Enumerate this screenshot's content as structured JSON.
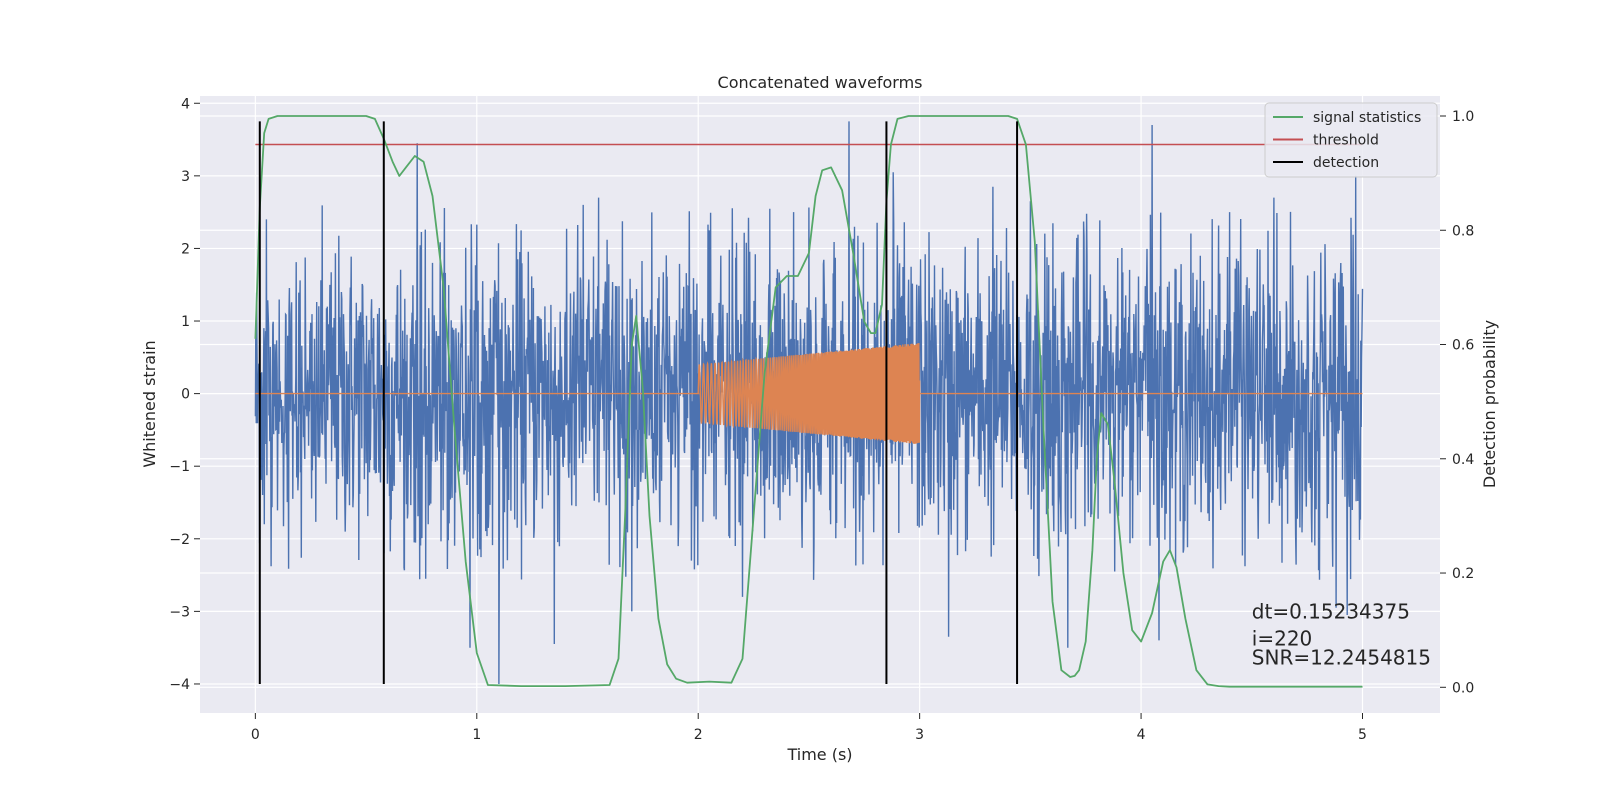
{
  "chart_data": {
    "type": "line",
    "title": "Concatenated waveforms",
    "xlabel": "Time (s)",
    "ylabel": "Whitened strain",
    "y2label": "Detection probability",
    "xlim": [
      -0.25,
      5.35
    ],
    "ylim": [
      -4.4,
      4.1
    ],
    "y2lim": [
      -0.045,
      1.035
    ],
    "x_ticks": [
      0,
      1,
      2,
      3,
      4,
      5
    ],
    "y_ticks": [
      -4,
      -3,
      -2,
      -1,
      0,
      1,
      2,
      3,
      4
    ],
    "y2_ticks": [
      0.0,
      0.2,
      0.4,
      0.6,
      0.8,
      1.0
    ],
    "x_tick_labels": [
      "0",
      "1",
      "2",
      "3",
      "4",
      "5"
    ],
    "y_tick_labels": [
      "−4",
      "−3",
      "−2",
      "−1",
      "0",
      "1",
      "2",
      "3",
      "4"
    ],
    "y2_tick_labels": [
      "0.0",
      "0.2",
      "0.4",
      "0.6",
      "0.8",
      "1.0"
    ],
    "grid": true,
    "legend_position": "top-right",
    "colors": {
      "strain": "#4c72b0",
      "injection": "#dd8452",
      "signal_statistics": "#55a868",
      "threshold": "#c44e52",
      "detection": "#000000",
      "background": "#eaeaf2",
      "grid": "#ffffff"
    },
    "series": [
      {
        "name": "",
        "axis": "left",
        "kind": "noise",
        "x_range": [
          0,
          5
        ],
        "typical_amplitude": 1.0,
        "peaks": [
          [
            0.04,
            -1.8
          ],
          [
            0.05,
            2.4
          ],
          [
            0.58,
            -2.2
          ],
          [
            0.73,
            3.45
          ],
          [
            0.77,
            -2.55
          ],
          [
            0.97,
            -3.5
          ],
          [
            1.1,
            -4.0
          ],
          [
            1.35,
            -3.45
          ],
          [
            1.48,
            2.6
          ],
          [
            1.55,
            2.7
          ],
          [
            1.7,
            -3.0
          ],
          [
            1.97,
            -2.3
          ],
          [
            2.2,
            -2.8
          ],
          [
            2.43,
            2.5
          ],
          [
            2.68,
            3.75
          ],
          [
            2.88,
            3.05
          ],
          [
            3.13,
            -3.35
          ],
          [
            3.33,
            2.85
          ],
          [
            3.5,
            2.65
          ],
          [
            3.67,
            -3.5
          ],
          [
            3.88,
            -2.45
          ],
          [
            4.05,
            3.7
          ],
          [
            4.08,
            -3.4
          ],
          [
            4.4,
            2.5
          ],
          [
            4.6,
            2.7
          ],
          [
            4.88,
            -2.95
          ],
          [
            4.93,
            -3.05
          ],
          [
            4.97,
            3.0
          ]
        ]
      },
      {
        "name": "",
        "axis": "left",
        "kind": "chirp",
        "baseline_x": [
          0,
          5
        ],
        "burst_x": [
          2.0,
          3.0
        ],
        "start_amplitude": 0.4,
        "end_amplitude": 0.7,
        "start_frequency_hz": 50,
        "end_frequency_hz": 200
      },
      {
        "name": "signal statistics",
        "axis": "right",
        "x": [
          0,
          0.02,
          0.04,
          0.06,
          0.1,
          0.2,
          0.4,
          0.5,
          0.54,
          0.58,
          0.62,
          0.65,
          0.68,
          0.72,
          0.76,
          0.8,
          0.85,
          0.9,
          0.95,
          1.0,
          1.05,
          1.2,
          1.4,
          1.6,
          1.64,
          1.67,
          1.7,
          1.72,
          1.75,
          1.78,
          1.82,
          1.86,
          1.9,
          1.95,
          2.05,
          2.15,
          2.2,
          2.25,
          2.3,
          2.35,
          2.4,
          2.45,
          2.5,
          2.53,
          2.56,
          2.6,
          2.65,
          2.7,
          2.75,
          2.78,
          2.8,
          2.83,
          2.85,
          2.87,
          2.9,
          2.95,
          3.0,
          3.2,
          3.4,
          3.44,
          3.48,
          3.52,
          3.56,
          3.6,
          3.64,
          3.68,
          3.7,
          3.72,
          3.75,
          3.78,
          3.8,
          3.82,
          3.85,
          3.88,
          3.92,
          3.96,
          4.0,
          4.05,
          4.1,
          4.13,
          4.16,
          4.2,
          4.25,
          4.3,
          4.35,
          4.4,
          4.6,
          5.0
        ],
        "values": [
          0.61,
          0.84,
          0.97,
          0.995,
          1.0,
          1.0,
          1.0,
          1.0,
          0.995,
          0.96,
          0.92,
          0.895,
          0.91,
          0.93,
          0.92,
          0.86,
          0.7,
          0.45,
          0.22,
          0.06,
          0.004,
          0.002,
          0.002,
          0.004,
          0.05,
          0.3,
          0.6,
          0.65,
          0.52,
          0.3,
          0.12,
          0.04,
          0.015,
          0.008,
          0.01,
          0.008,
          0.05,
          0.3,
          0.55,
          0.7,
          0.72,
          0.72,
          0.76,
          0.86,
          0.905,
          0.91,
          0.87,
          0.76,
          0.64,
          0.62,
          0.62,
          0.67,
          0.85,
          0.95,
          0.995,
          1.0,
          1.0,
          1.0,
          1.0,
          0.995,
          0.95,
          0.78,
          0.45,
          0.15,
          0.03,
          0.018,
          0.02,
          0.03,
          0.08,
          0.24,
          0.4,
          0.48,
          0.46,
          0.36,
          0.2,
          0.1,
          0.08,
          0.13,
          0.22,
          0.24,
          0.21,
          0.12,
          0.03,
          0.005,
          0.002,
          0.001,
          0.001,
          0.001
        ]
      },
      {
        "name": "threshold",
        "axis": "right",
        "x": [
          0,
          5
        ],
        "values": [
          0.95,
          0.95
        ]
      },
      {
        "name": "detection",
        "axis": "left",
        "kind": "vlines",
        "x": [
          0.02,
          0.58,
          2.85,
          3.44
        ],
        "y_range": [
          -4.0,
          3.75
        ]
      }
    ],
    "annotations": [
      {
        "text": "dt=0.15234375",
        "x": 4.5,
        "y": -3.1
      },
      {
        "text": " i=220",
        "x": 4.5,
        "y": -3.47
      },
      {
        "text": "SNR=12.2454815",
        "x": 4.5,
        "y": -3.73
      }
    ]
  }
}
